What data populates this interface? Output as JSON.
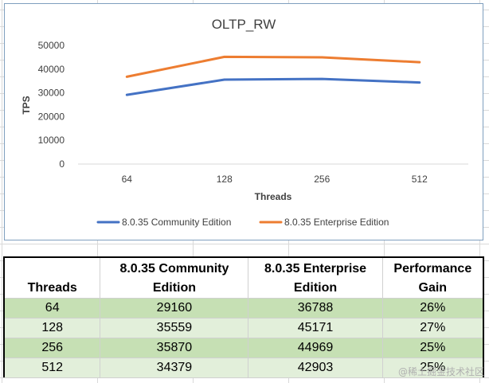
{
  "chart_data": {
    "type": "line",
    "title": "OLTP_RW",
    "xlabel": "Threads",
    "ylabel": "TPS",
    "categories": [
      "64",
      "128",
      "256",
      "512"
    ],
    "ylim": [
      0,
      50000
    ],
    "yticks": [
      0,
      10000,
      20000,
      30000,
      40000,
      50000
    ],
    "grid": false,
    "legend_position": "bottom",
    "series": [
      {
        "name": "8.0.35 Community Edition",
        "color": "#4472c4",
        "values": [
          29160,
          35559,
          35870,
          34379
        ]
      },
      {
        "name": "8.0.35 Enterprise Edition",
        "color": "#ed7d31",
        "values": [
          36788,
          45171,
          44969,
          42903
        ]
      }
    ]
  },
  "table": {
    "headers": [
      "Threads",
      "8.0.35 Community Edition",
      "8.0.35 Enterprise Edition",
      "Performance Gain"
    ],
    "rows": [
      [
        "64",
        "29160",
        "36788",
        "26%"
      ],
      [
        "128",
        "35559",
        "45171",
        "27%"
      ],
      [
        "256",
        "35870",
        "44969",
        "25%"
      ],
      [
        "512",
        "34379",
        "42903",
        "25%"
      ]
    ]
  },
  "watermark": "@稀土掘金技术社区"
}
